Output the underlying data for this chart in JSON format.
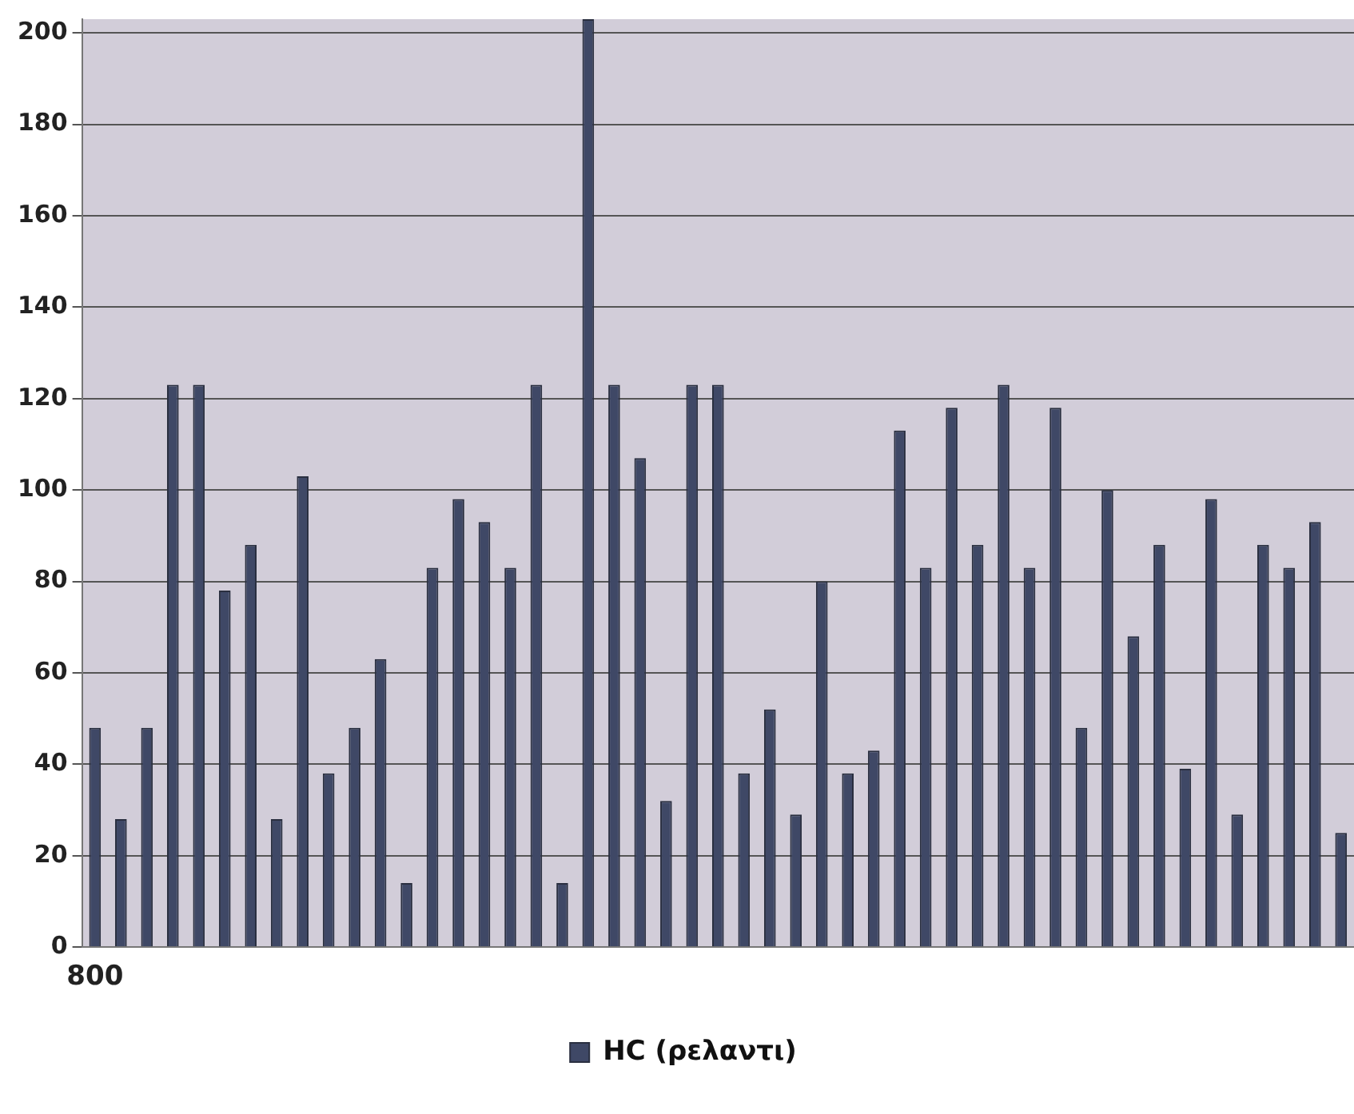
{
  "chart_data": {
    "type": "bar",
    "categories": [
      "800",
      null,
      null,
      null,
      null,
      null,
      null,
      null,
      null,
      null,
      null,
      null,
      null,
      null,
      null,
      null,
      null,
      null,
      null,
      null,
      null,
      null,
      null,
      null,
      null,
      null,
      null,
      null,
      null,
      null,
      null,
      null,
      null,
      null,
      null,
      null,
      null,
      null,
      null,
      null,
      null,
      null,
      null,
      null,
      null,
      null,
      null,
      null,
      null
    ],
    "series": [
      {
        "name": "HC (ρελαντι)",
        "color": "#3f4866",
        "values": [
          48,
          28,
          48,
          123,
          123,
          78,
          88,
          28,
          103,
          38,
          48,
          63,
          14,
          83,
          98,
          93,
          83,
          123,
          14,
          203,
          123,
          107,
          32,
          123,
          123,
          38,
          52,
          29,
          80,
          38,
          43,
          113,
          83,
          118,
          88,
          123,
          83,
          118,
          48,
          100,
          68,
          88,
          39,
          98,
          29,
          88,
          83,
          93,
          25
        ]
      }
    ],
    "ylim": [
      0,
      203
    ],
    "yticks": [
      0,
      20,
      40,
      60,
      80,
      100,
      120,
      140,
      160,
      180,
      200
    ],
    "grid": "y",
    "legend": "bottom"
  }
}
